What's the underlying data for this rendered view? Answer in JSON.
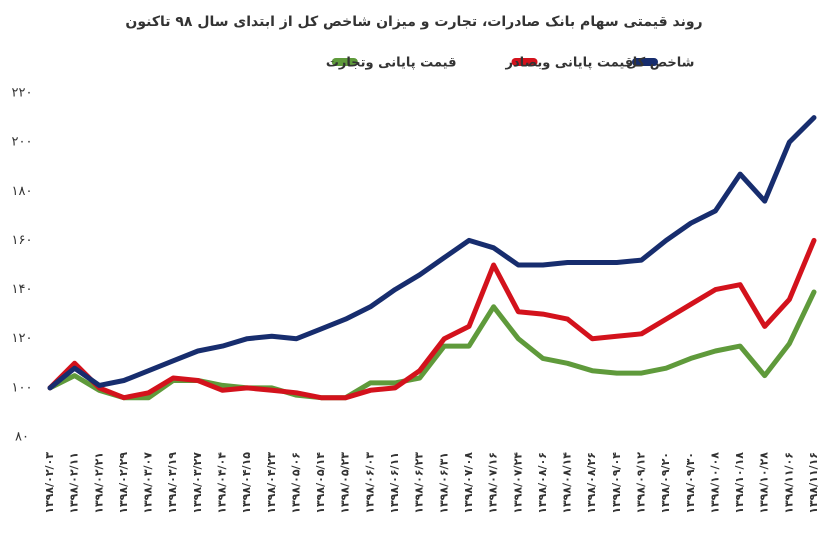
{
  "chart_data": {
    "type": "line",
    "title": "روند قیمتی سهام بانک صادرات، تجارت و میزان شاخص کل از ابتدای سال ۹۸ تاکنون",
    "categories": [
      "۱۳۹۸/۰۲/۰۳",
      "۱۳۹۸/۰۲/۱۱",
      "۱۳۹۸/۰۲/۲۱",
      "۱۳۹۸/۰۲/۲۹",
      "۱۳۹۸/۰۳/۰۷",
      "۱۳۹۸/۰۳/۱۹",
      "۱۳۹۸/۰۳/۲۷",
      "۱۳۹۸/۰۴/۰۴",
      "۱۳۹۸/۰۴/۱۵",
      "۱۳۹۸/۰۴/۲۳",
      "۱۳۹۸/۰۵/۰۶",
      "۱۳۹۸/۰۵/۱۴",
      "۱۳۹۸/۰۵/۲۳",
      "۱۳۹۸/۰۶/۰۳",
      "۱۳۹۸/۰۶/۱۱",
      "۱۳۹۸/۰۶/۲۳",
      "۱۳۹۸/۰۶/۳۱",
      "۱۳۹۸/۰۷/۰۸",
      "۱۳۹۸/۰۷/۱۶",
      "۱۳۹۸/۰۷/۲۴",
      "۱۳۹۸/۰۸/۰۶",
      "۱۳۹۸/۰۸/۱۴",
      "۱۳۹۸/۰۸/۲۶",
      "۱۳۹۸/۰۹/۰۴",
      "۱۳۹۸/۰۹/۱۲",
      "۱۳۹۸/۰۹/۲۰",
      "۱۳۹۸/۰۹/۳۰",
      "۱۳۹۸/۱۰/۰۸",
      "۱۳۹۸/۱۰/۱۸",
      "۱۳۹۸/۱۰/۲۸",
      "۱۳۹۸/۱۱/۰۶",
      "۱۳۹۸/۱۱/۱۶"
    ],
    "series": [
      {
        "name": "شاخص کل",
        "color": "#172d6e",
        "values": [
          100,
          108,
          101,
          103,
          107,
          111,
          115,
          117,
          120,
          121,
          120,
          124,
          128,
          133,
          140,
          146,
          153,
          160,
          157,
          150,
          150,
          151,
          151,
          151,
          152,
          160,
          167,
          172,
          187,
          176,
          200,
          210
        ]
      },
      {
        "name": "قیمت پایانی وبصادر",
        "color": "#d3121c",
        "values": [
          100,
          110,
          100,
          96,
          98,
          104,
          103,
          99,
          100,
          99,
          98,
          96,
          96,
          99,
          100,
          107,
          120,
          125,
          150,
          131,
          130,
          128,
          120,
          121,
          122,
          128,
          134,
          140,
          142,
          125,
          136,
          160
        ]
      },
      {
        "name": "قیمت پایانی وتجارت",
        "color": "#5f9a3b",
        "values": [
          100,
          105,
          99,
          96,
          96,
          103,
          103,
          101,
          100,
          100,
          97,
          96,
          96,
          102,
          102,
          104,
          117,
          117,
          133,
          120,
          112,
          110,
          107,
          106,
          106,
          108,
          112,
          115,
          117,
          105,
          118,
          139
        ]
      }
    ],
    "ylim": [
      80,
      220
    ],
    "yticks": [
      {
        "value": 80,
        "label": "۸۰"
      },
      {
        "value": 100,
        "label": "۱۰۰"
      },
      {
        "value": 120,
        "label": "۱۲۰"
      },
      {
        "value": 140,
        "label": "۱۴۰"
      },
      {
        "value": 160,
        "label": "۱۶۰"
      },
      {
        "value": 180,
        "label": "۱۸۰"
      },
      {
        "value": 200,
        "label": "۲۰۰"
      },
      {
        "value": 220,
        "label": "۲۲۰"
      }
    ]
  }
}
